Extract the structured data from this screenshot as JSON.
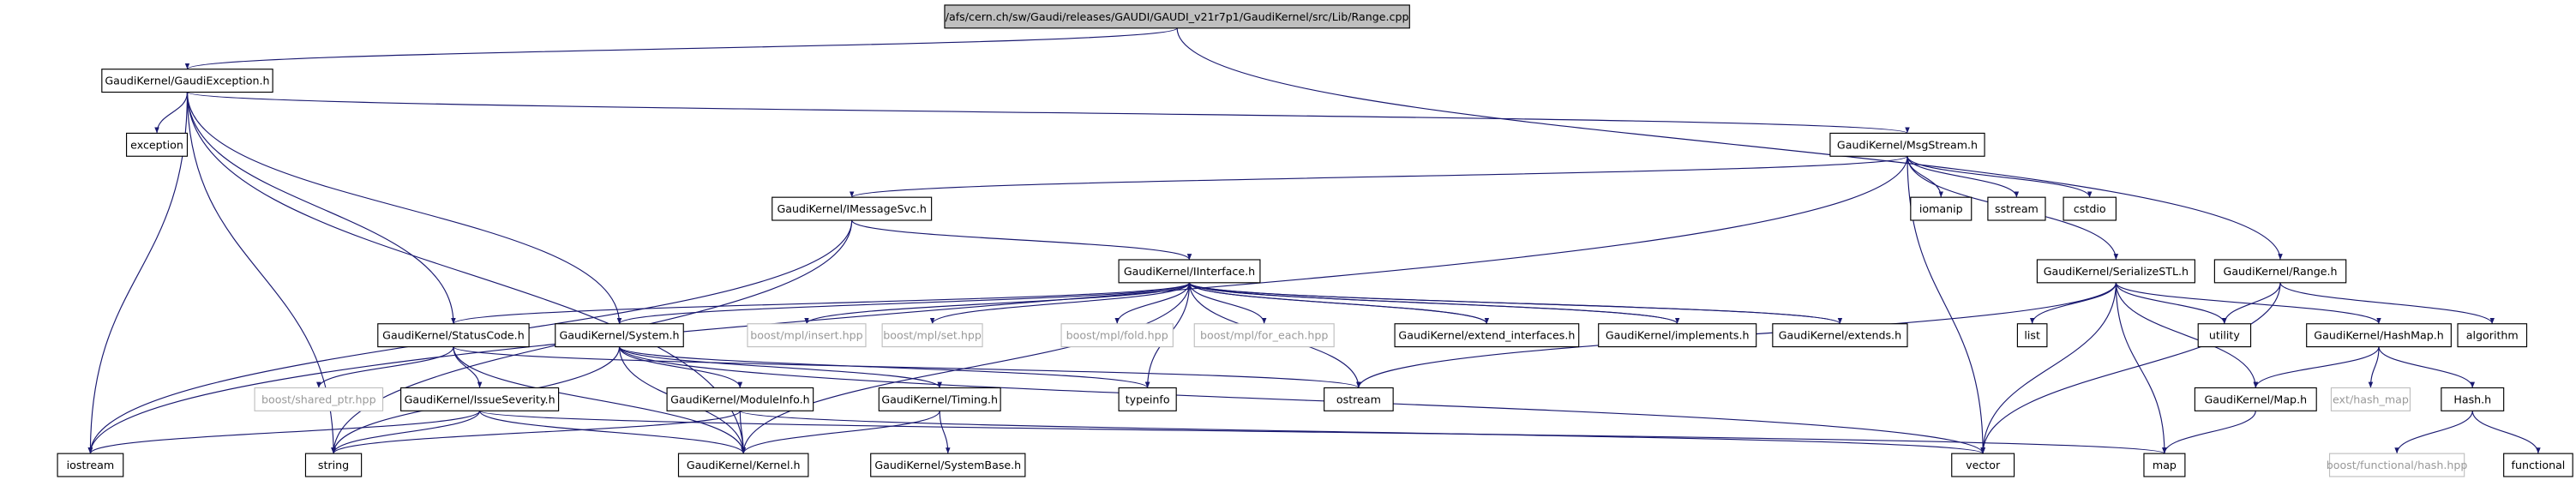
{
  "root": "/afs/cern.ch/sw/Gaudi/releases/GAUDI/GAUDI_v21r7p1/GaudiKernel/src/Lib/Range.cpp",
  "nodes": [
    "GaudiKernel/GaudiException.h",
    "exception",
    "GaudiKernel/MsgStream.h",
    "GaudiKernel/IMessageSvc.h",
    "iomanip",
    "sstream",
    "cstdio",
    "GaudiKernel/SerializeSTL.h",
    "GaudiKernel/Range.h",
    "GaudiKernel/IInterface.h",
    "GaudiKernel/StatusCode.h",
    "GaudiKernel/System.h",
    "boost/mpl/insert.hpp",
    "boost/mpl/set.hpp",
    "boost/mpl/fold.hpp",
    "boost/mpl/for_each.hpp",
    "GaudiKernel/extend_interfaces.h",
    "GaudiKernel/implements.h",
    "GaudiKernel/extends.h",
    "list",
    "utility",
    "GaudiKernel/HashMap.h",
    "algorithm",
    "boost/shared_ptr.hpp",
    "GaudiKernel/IssueSeverity.h",
    "GaudiKernel/ModuleInfo.h",
    "GaudiKernel/Timing.h",
    "typeinfo",
    "ostream",
    "GaudiKernel/Map.h",
    "ext/hash_map",
    "Hash.h",
    "iostream",
    "string",
    "GaudiKernel/Kernel.h",
    "GaudiKernel/SystemBase.h",
    "vector",
    "map",
    "boost/functional/hash.hpp",
    "functional"
  ]
}
